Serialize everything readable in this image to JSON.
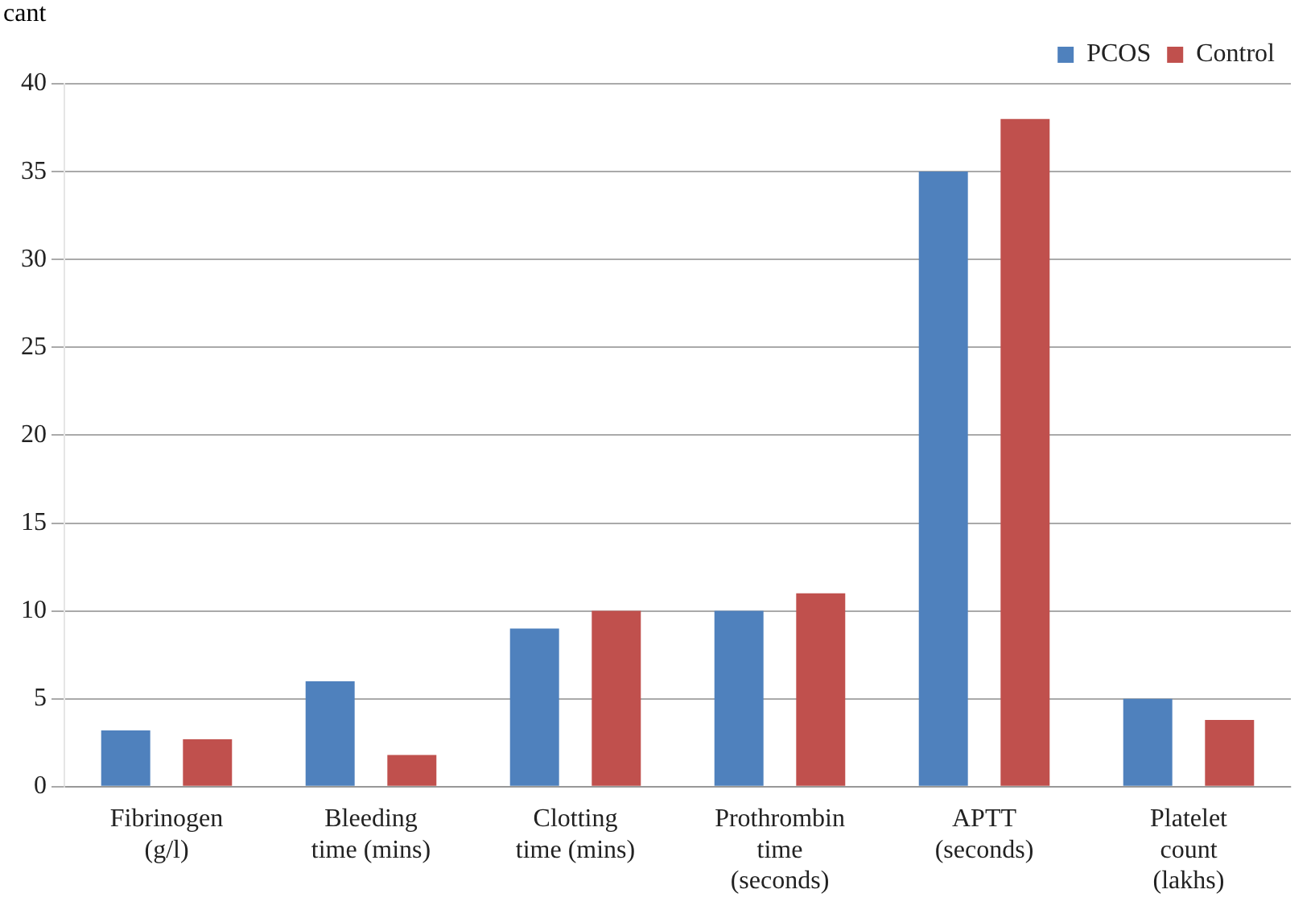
{
  "chart_data": {
    "type": "bar",
    "categories": [
      "Fibrinogen (g/l)",
      "Bleeding time (mins)",
      "Clotting time (mins)",
      "Prothrombin time (seconds)",
      "APTT (seconds)",
      "Platelet count (lakhs)"
    ],
    "series": [
      {
        "name": "PCOS",
        "color": "#4f81bd",
        "values": [
          3.2,
          6,
          9,
          10,
          35,
          5
        ]
      },
      {
        "name": "Control",
        "color": "#c0504d",
        "values": [
          2.7,
          1.8,
          10,
          11,
          38,
          3.8
        ]
      }
    ],
    "ylim": [
      0,
      40
    ],
    "yticks": [
      0,
      5,
      10,
      15,
      20,
      25,
      30,
      35,
      40
    ],
    "grid": "y",
    "legend": "top right",
    "annotations": [
      "cant"
    ]
  }
}
